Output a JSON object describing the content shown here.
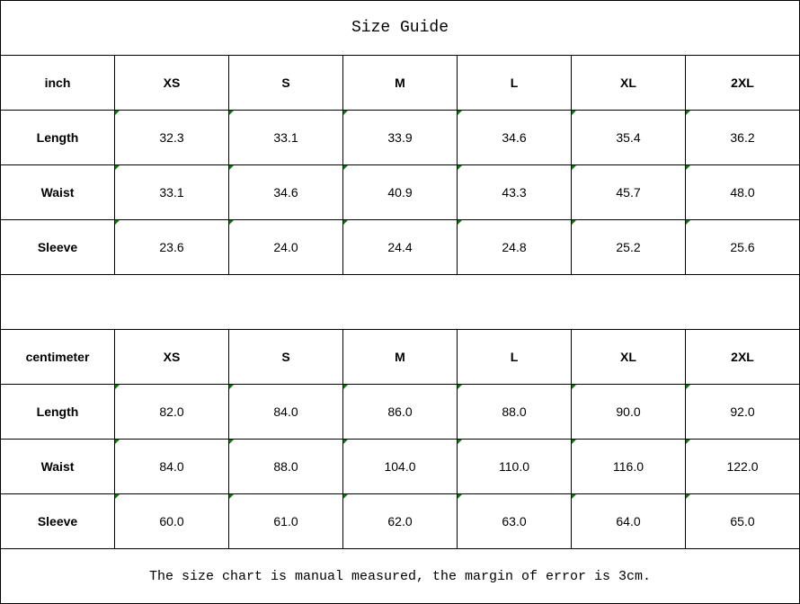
{
  "title": "Size Guide",
  "tables": [
    {
      "unit": "inch",
      "sizes": [
        "XS",
        "S",
        "M",
        "L",
        "XL",
        "2XL"
      ],
      "rows": [
        {
          "label": "Length",
          "values": [
            "32.3",
            "33.1",
            "33.9",
            "34.6",
            "35.4",
            "36.2"
          ]
        },
        {
          "label": "Waist",
          "values": [
            "33.1",
            "34.6",
            "40.9",
            "43.3",
            "45.7",
            "48.0"
          ]
        },
        {
          "label": "Sleeve",
          "values": [
            "23.6",
            "24.0",
            "24.4",
            "24.8",
            "25.2",
            "25.6"
          ]
        }
      ]
    },
    {
      "unit": "centimeter",
      "sizes": [
        "XS",
        "S",
        "M",
        "L",
        "XL",
        "2XL"
      ],
      "rows": [
        {
          "label": "Length",
          "values": [
            "82.0",
            "84.0",
            "86.0",
            "88.0",
            "90.0",
            "92.0"
          ]
        },
        {
          "label": "Waist",
          "values": [
            "84.0",
            "88.0",
            "104.0",
            "110.0",
            "116.0",
            "122.0"
          ]
        },
        {
          "label": "Sleeve",
          "values": [
            "60.0",
            "61.0",
            "62.0",
            "63.0",
            "64.0",
            "65.0"
          ]
        }
      ]
    }
  ],
  "footer": "The size chart is manual measured, the margin of error is 3cm.",
  "colors": {
    "indicator": "#008000",
    "border": "#000000"
  }
}
